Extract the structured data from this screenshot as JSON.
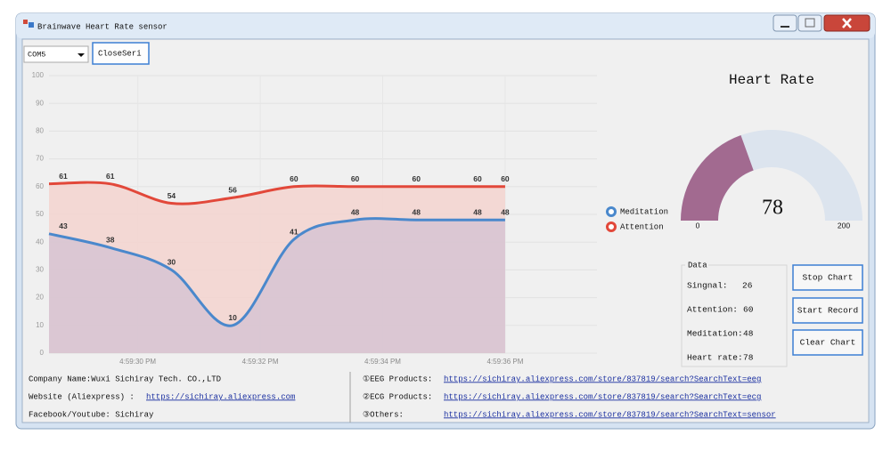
{
  "window": {
    "title": "Brainwave Heart Rate sensor"
  },
  "toolbar": {
    "port": "COM5",
    "close_button": "CloseSeri"
  },
  "chart_data": [
    {
      "type": "line",
      "x": [
        28.55,
        29.55,
        30.55,
        31.55,
        32.55,
        33.55,
        34.55,
        35.55,
        36
      ],
      "xlim": [
        28.55,
        37.5
      ],
      "xticks": [
        {
          "value": 30,
          "label": "4:59:30 PM"
        },
        {
          "value": 32,
          "label": "4:59:32 PM"
        },
        {
          "value": 34,
          "label": "4:59:34 PM"
        },
        {
          "value": 36,
          "label": "4:59:36 PM"
        }
      ],
      "ylim": [
        0,
        100
      ],
      "yticks": [
        0,
        10,
        20,
        30,
        40,
        50,
        60,
        70,
        80,
        90,
        100
      ],
      "grid": true,
      "area": true,
      "legend": "right",
      "series": [
        {
          "name": "Attention",
          "color": "#e2483a",
          "fill": "#f3d3cf",
          "values": [
            61,
            61,
            54,
            56,
            60,
            60,
            60,
            60,
            60
          ]
        },
        {
          "name": "Meditation",
          "color": "#4a88cc",
          "fill": "#d6c4d2",
          "values": [
            43,
            38,
            30,
            10,
            41,
            48,
            48,
            48,
            48
          ]
        }
      ]
    },
    {
      "type": "gauge",
      "title": "Heart Rate",
      "value": 78,
      "ylim": [
        0,
        200
      ],
      "yticks": [
        0,
        200
      ],
      "color": "#a26a90",
      "track_color": "#dce4ee"
    }
  ],
  "data_panel": {
    "title": "Data",
    "rows": [
      {
        "label": "Singnal:",
        "value": 26
      },
      {
        "label": "Attention:",
        "value": 60
      },
      {
        "label": "Meditation:",
        "value": 48
      },
      {
        "label": "Heart rate:",
        "value": 78
      }
    ]
  },
  "buttons": [
    "Stop Chart",
    "Start Record",
    "Clear Chart"
  ],
  "footer": {
    "left": [
      {
        "label": "Company Name:Wuxi Sichiray Tech. CO.,LTD"
      },
      {
        "label": "Website (Aliexpress) :",
        "link": "https://sichiray.aliexpress.com"
      },
      {
        "label": "Facebook/Youtube: Sichiray"
      }
    ],
    "right": [
      {
        "label": "①EEG Products:",
        "link": "https://sichiray.aliexpress.com/store/837819/search?SearchText=eeg"
      },
      {
        "label": "②ECG Products:",
        "link": "https://sichiray.aliexpress.com/store/837819/search?SearchText=ecg"
      },
      {
        "label": "③Others:",
        "link": "https://sichiray.aliexpress.com/store/837819/search?SearchText=sensor"
      }
    ]
  }
}
